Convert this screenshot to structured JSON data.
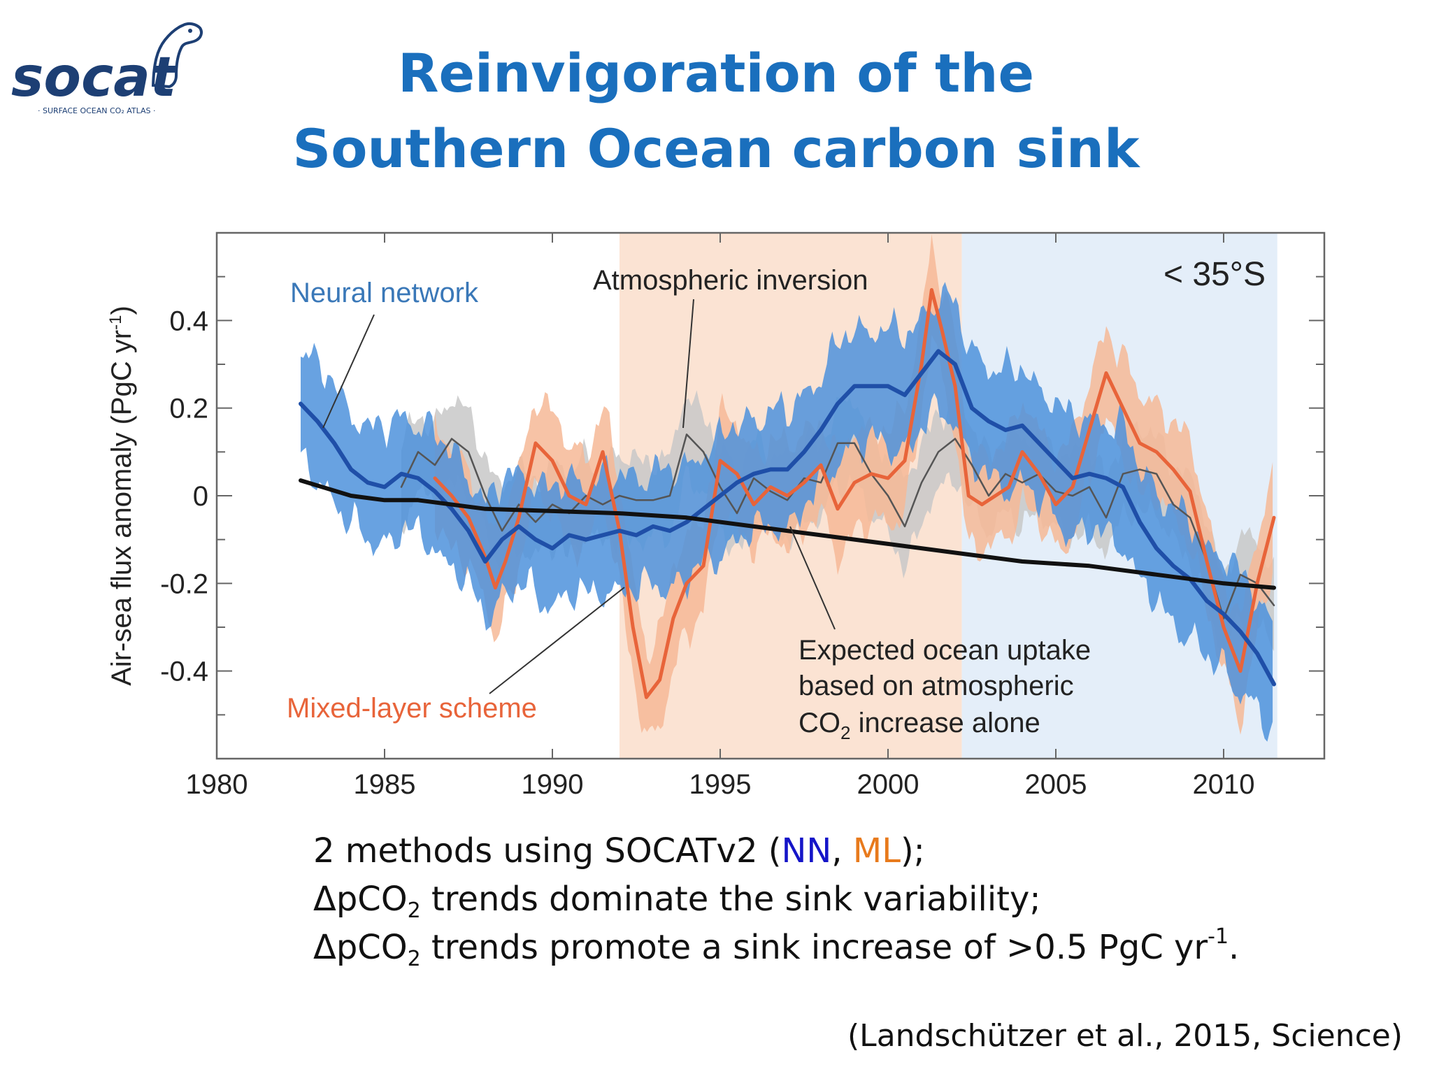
{
  "logo": {
    "text": "socat",
    "tagline": "· SURFACE OCEAN CO₂ ATLAS ·"
  },
  "slide": {
    "title_line1": "Reinvigoration of the",
    "title_line2": "Southern Ocean carbon sink"
  },
  "bullets": {
    "line1_prefix": "2 methods using SOCATv2 (",
    "line1_nn": "NN",
    "line1_sep": ", ",
    "line1_ml": "ML",
    "line1_suffix": ");",
    "line2_a": "ΔpCO",
    "line2_sub": "2",
    "line2_b": " trends dominate the sink variability;",
    "line3_a": "ΔpCO",
    "line3_sub": "2",
    "line3_b": " trends promote a sink increase of >0.5 PgC yr",
    "line3_sup": "-1",
    "line3_c": "."
  },
  "citation": "(Landschützer et al., 2015, Science)",
  "colors": {
    "title": "#1a6fbd",
    "nn_line": "#1f4fa8",
    "nn_band": "#4d92dc",
    "ml_line": "#e8643a",
    "ml_band": "#f6b896",
    "inversion_line": "#555555",
    "inversion_band": "#c8c8c8",
    "expected_line": "#111111",
    "shade_weakening": "#fbe3d3",
    "shade_reinvigoration": "#e4eef9"
  },
  "chart_data": {
    "type": "line",
    "ylabel": "Air-sea flux anomaly (PgC yr",
    "ylabel_sup": "-1",
    "ylabel_close": ")",
    "xlim": [
      1980,
      2013
    ],
    "ylim": [
      -0.6,
      0.6
    ],
    "x_ticks": [
      1980,
      1985,
      1990,
      1995,
      2000,
      2005,
      2010
    ],
    "x_tick_labels": [
      "1980",
      "1985",
      "1990",
      "1995",
      "2000",
      "2005",
      "2010"
    ],
    "y_ticks": [
      -0.4,
      -0.2,
      0,
      0.2,
      0.4
    ],
    "y_tick_labels": [
      "-0.4",
      "-0.2",
      "0",
      "0.2",
      "0.4"
    ],
    "region_label": "< 35°S",
    "shaded_periods": [
      {
        "from": 1992,
        "to": 2002.2,
        "color": "#fbe3d3"
      },
      {
        "from": 2002.2,
        "to": 2011.6,
        "color": "#e4eef9"
      }
    ],
    "annotations": {
      "neural_network": "Neural network",
      "atmospheric_inversion": "Atmospheric inversion",
      "mixed_layer_scheme": "Mixed-layer scheme",
      "expected_line1": "Expected ocean uptake",
      "expected_line2": "based on atmospheric",
      "expected_line3_a": "CO",
      "expected_line3_sub": "2",
      "expected_line3_b": " increase alone"
    },
    "series": [
      {
        "name": "Neural network",
        "x": [
          1982.5,
          1983,
          1983.5,
          1984,
          1984.5,
          1985,
          1985.5,
          1986,
          1986.5,
          1987,
          1987.5,
          1988,
          1988.5,
          1989,
          1989.5,
          1990,
          1990.5,
          1991,
          1991.5,
          1992,
          1992.5,
          1993,
          1993.5,
          1994,
          1994.5,
          1995,
          1995.5,
          1996,
          1996.5,
          1997,
          1997.5,
          1998,
          1998.5,
          1999,
          1999.5,
          2000,
          2000.5,
          2001,
          2001.5,
          2002,
          2002.5,
          2003,
          2003.5,
          2004,
          2004.5,
          2005,
          2005.5,
          2006,
          2006.5,
          2007,
          2007.5,
          2008,
          2008.5,
          2009,
          2009.5,
          2010,
          2010.5,
          2011,
          2011.5
        ],
        "y": [
          0.21,
          0.17,
          0.12,
          0.06,
          0.03,
          0.02,
          0.05,
          0.04,
          0.01,
          -0.03,
          -0.08,
          -0.15,
          -0.1,
          -0.07,
          -0.1,
          -0.12,
          -0.09,
          -0.1,
          -0.09,
          -0.08,
          -0.09,
          -0.07,
          -0.08,
          -0.06,
          -0.03,
          0.0,
          0.03,
          0.05,
          0.06,
          0.06,
          0.1,
          0.15,
          0.21,
          0.25,
          0.25,
          0.25,
          0.23,
          0.28,
          0.33,
          0.3,
          0.2,
          0.17,
          0.15,
          0.16,
          0.12,
          0.08,
          0.04,
          0.05,
          0.04,
          0.02,
          -0.06,
          -0.12,
          -0.16,
          -0.19,
          -0.24,
          -0.27,
          -0.31,
          -0.36,
          -0.43
        ]
      },
      {
        "name": "Mixed-layer scheme",
        "x": [
          1986.5,
          1987,
          1987.5,
          1988,
          1988.3,
          1988.6,
          1989,
          1989.5,
          1990,
          1990.5,
          1991,
          1991.5,
          1992,
          1992.4,
          1992.8,
          1993.2,
          1993.6,
          1994,
          1994.5,
          1995,
          1995.5,
          1996,
          1996.5,
          1997,
          1997.5,
          1998,
          1998.5,
          1999,
          1999.5,
          2000,
          2000.5,
          2001,
          2001.3,
          2001.6,
          2002,
          2002.4,
          2002.8,
          2003.2,
          2003.6,
          2004,
          2004.5,
          2005,
          2005.5,
          2006,
          2006.5,
          2007,
          2007.5,
          2008,
          2008.5,
          2009,
          2009.5,
          2010,
          2010.5,
          2011,
          2011.5
        ],
        "y": [
          0.04,
          0.0,
          -0.05,
          -0.14,
          -0.21,
          -0.15,
          -0.05,
          0.12,
          0.08,
          0.0,
          -0.02,
          0.1,
          -0.08,
          -0.3,
          -0.46,
          -0.42,
          -0.28,
          -0.2,
          -0.16,
          0.08,
          0.05,
          -0.02,
          0.02,
          0.0,
          0.03,
          0.07,
          -0.03,
          0.03,
          0.05,
          0.04,
          0.08,
          0.3,
          0.47,
          0.38,
          0.25,
          0.0,
          -0.02,
          0.0,
          0.02,
          0.1,
          0.05,
          -0.02,
          0.02,
          0.15,
          0.28,
          0.2,
          0.12,
          0.1,
          0.06,
          0.01,
          -0.15,
          -0.3,
          -0.4,
          -0.2,
          -0.05
        ]
      },
      {
        "name": "Atmospheric inversion",
        "x": [
          1985.5,
          1986,
          1986.5,
          1987,
          1987.5,
          1988,
          1988.5,
          1989,
          1989.5,
          1990,
          1990.5,
          1991,
          1991.5,
          1992,
          1992.5,
          1993,
          1993.5,
          1994,
          1994.5,
          1995,
          1995.5,
          1996,
          1996.5,
          1997,
          1997.5,
          1998,
          1998.5,
          1999,
          1999.5,
          2000,
          2000.5,
          2001,
          2001.5,
          2002,
          2002.5,
          2003,
          2003.5,
          2004,
          2004.5,
          2005,
          2005.5,
          2006,
          2006.5,
          2007,
          2007.5,
          2008,
          2008.5,
          2009,
          2009.5,
          2010,
          2010.5,
          2011,
          2011.5
        ],
        "y": [
          0.02,
          0.1,
          0.07,
          0.13,
          0.1,
          0.0,
          -0.08,
          -0.02,
          -0.06,
          -0.02,
          -0.04,
          0.0,
          -0.02,
          0.0,
          -0.01,
          -0.01,
          0.0,
          0.14,
          0.1,
          0.02,
          -0.04,
          0.04,
          0.01,
          -0.01,
          0.04,
          0.03,
          0.12,
          0.12,
          0.05,
          0.0,
          -0.07,
          0.03,
          0.1,
          0.13,
          0.07,
          0.0,
          0.05,
          0.03,
          0.05,
          0.01,
          0.0,
          0.02,
          -0.05,
          0.05,
          0.06,
          0.05,
          -0.02,
          -0.05,
          -0.15,
          -0.28,
          -0.18,
          -0.2,
          -0.25
        ]
      },
      {
        "name": "Expected ocean uptake",
        "x": [
          1982.5,
          1984,
          1985,
          1986,
          1988,
          1990,
          1992,
          1994,
          1996,
          1998,
          2000,
          2002,
          2004,
          2006,
          2008,
          2010,
          2011.5
        ],
        "y": [
          0.035,
          0.0,
          -0.01,
          -0.01,
          -0.03,
          -0.035,
          -0.04,
          -0.05,
          -0.07,
          -0.09,
          -0.11,
          -0.13,
          -0.15,
          -0.16,
          -0.18,
          -0.2,
          -0.21
        ]
      }
    ]
  }
}
